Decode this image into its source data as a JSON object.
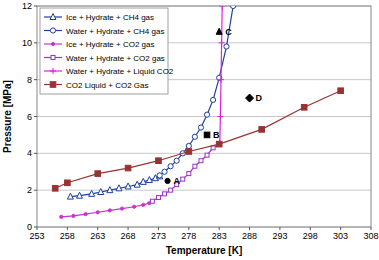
{
  "chart_data": {
    "type": "line",
    "x_label": "Temperature [K]",
    "y_label": "Pressure [MPa]",
    "xlim": [
      253,
      308
    ],
    "xticks": [
      253,
      258,
      263,
      268,
      273,
      278,
      283,
      288,
      293,
      298,
      303,
      308
    ],
    "ylim": [
      0,
      12
    ],
    "yticks": [
      0,
      2,
      4,
      6,
      8,
      10,
      12
    ],
    "grid": true,
    "legend": "top-left",
    "series": [
      {
        "name": "Ice + Hydrate + CH4 gas",
        "color": "#1f3f9f",
        "marker": "triangle",
        "line_style": "solid",
        "x": [
          258.5,
          260,
          262,
          263.5,
          265,
          266.5,
          268,
          269.5,
          270.5,
          271.5,
          272.5,
          273.2
        ],
        "values": [
          1.65,
          1.7,
          1.8,
          1.9,
          2.0,
          2.1,
          2.2,
          2.3,
          2.45,
          2.55,
          2.65,
          2.75
        ]
      },
      {
        "name": "Water + Hydrate + CH4 gas",
        "color": "#1f3f9f",
        "marker": "circle",
        "line_style": "solid",
        "x": [
          273.2,
          274,
          275,
          276,
          277,
          278,
          279,
          280,
          281,
          282,
          283,
          284.2,
          285.3
        ],
        "values": [
          2.8,
          3.0,
          3.3,
          3.6,
          4.0,
          4.4,
          4.9,
          5.4,
          6.1,
          6.9,
          8.1,
          9.8,
          12
        ]
      },
      {
        "name": "Ice + Hydrate + CO2 gas",
        "color": "#cc33cc",
        "marker": "dot",
        "line_style": "solid",
        "x": [
          257,
          259,
          261,
          263,
          265,
          267,
          269,
          270.5,
          271.5
        ],
        "values": [
          0.55,
          0.6,
          0.7,
          0.8,
          0.9,
          1.0,
          1.1,
          1.2,
          1.3
        ]
      },
      {
        "name": "Water + Hydrate + CO2 gas",
        "color": "#9933cc",
        "marker": "square",
        "line_style": "solid",
        "x": [
          272,
          273,
          274,
          275,
          276,
          277,
          278,
          279,
          280,
          281,
          282,
          283
        ],
        "values": [
          1.4,
          1.6,
          1.8,
          2.0,
          2.3,
          2.6,
          2.9,
          3.3,
          3.6,
          3.9,
          4.3,
          4.5
        ]
      },
      {
        "name": "Water + Hydrate + Liquid CO2",
        "color": "#dd22dd",
        "marker": "plus",
        "line_style": "solid",
        "x": [
          283.1,
          283.2,
          283.3,
          283.4,
          283.5
        ],
        "values": [
          4.6,
          6,
          8,
          10,
          12
        ]
      },
      {
        "name": "CO2 Liquid + CO2 Gas",
        "color": "#993333",
        "marker": "square-filled",
        "line_style": "solid",
        "x": [
          256,
          258,
          263,
          268,
          273,
          278,
          283,
          290,
          297,
          303
        ],
        "values": [
          2.1,
          2.4,
          2.9,
          3.2,
          3.6,
          4.1,
          4.5,
          5.3,
          6.5,
          7.4
        ]
      }
    ],
    "annotations": [
      {
        "text": "A",
        "x": 274.5,
        "y": 2.5,
        "marker": "circle-filled",
        "color": "#000000"
      },
      {
        "text": "B",
        "x": 281,
        "y": 5,
        "marker": "square-filled",
        "color": "#000000"
      },
      {
        "text": "C",
        "x": 283,
        "y": 10.6,
        "marker": "triangle-filled",
        "color": "#000000"
      },
      {
        "text": "D",
        "x": 288,
        "y": 7,
        "marker": "diamond-filled",
        "color": "#000000"
      }
    ]
  }
}
